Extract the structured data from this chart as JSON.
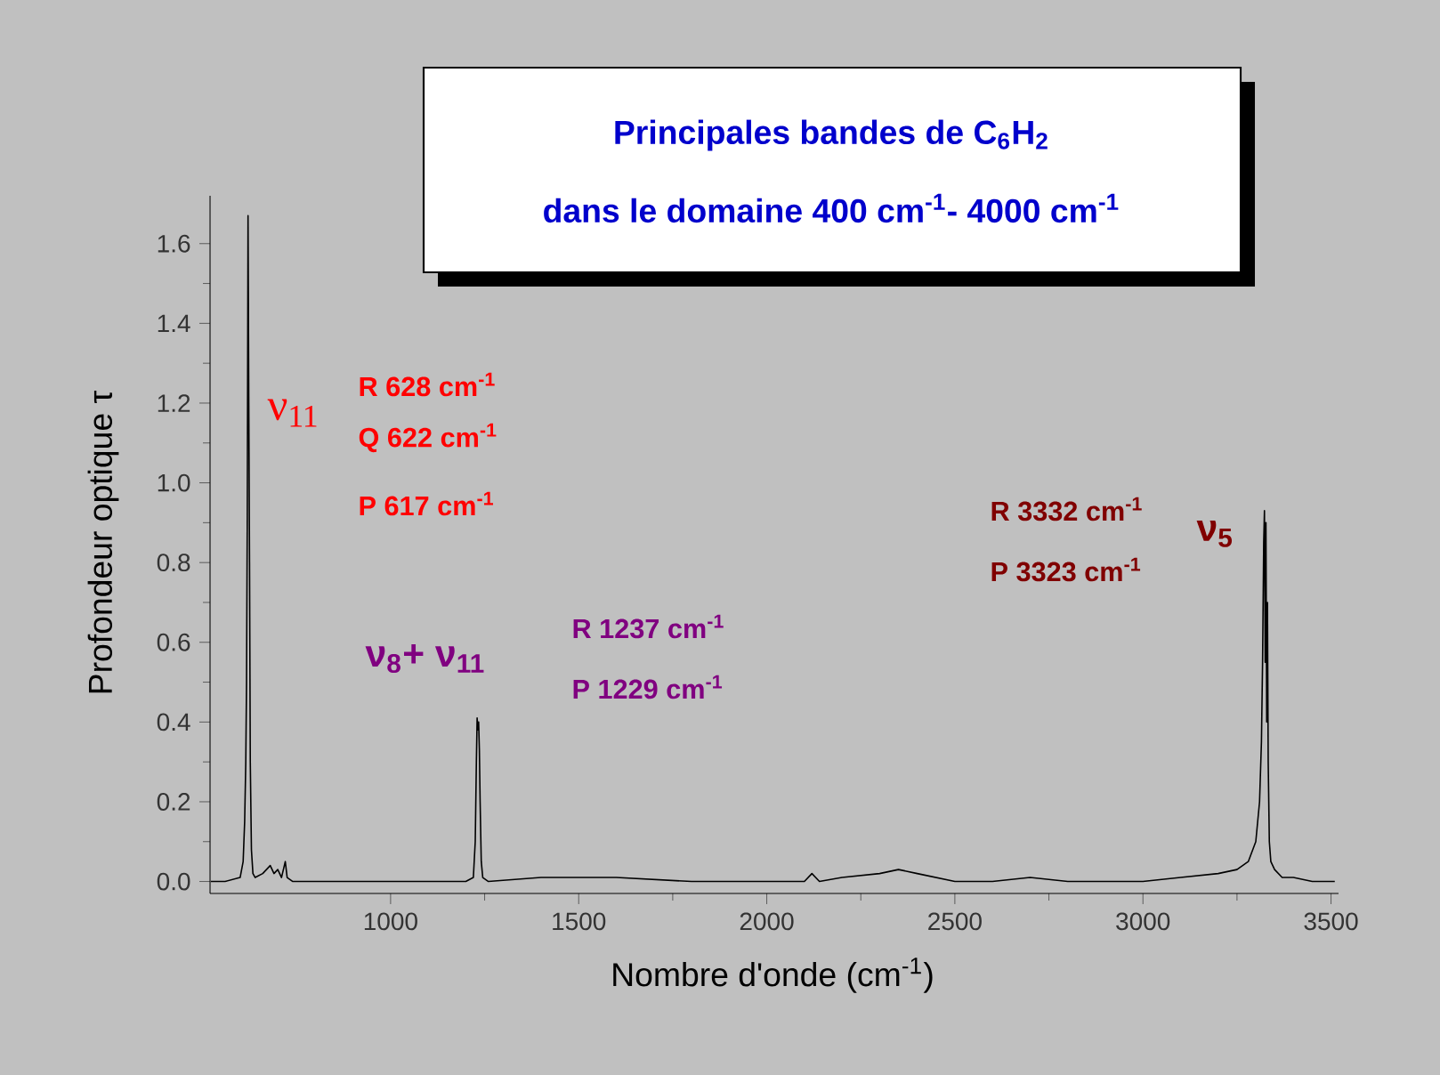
{
  "chart_data": {
    "type": "line",
    "title": "Principales bandes de C$_{6}$H$_{2}$",
    "subtitle": "dans le domaine 400 cm$^{-1}$- 4000 cm$^{-1}$",
    "xlabel": "Nombre d'onde (cm$^{-1}$)",
    "ylabel": "Profondeur optique τ",
    "x": [
      522,
      560,
      600,
      608,
      612,
      615,
      617,
      619,
      621,
      623,
      625,
      627,
      630,
      634,
      640,
      660,
      680,
      690,
      700,
      710,
      720,
      725,
      740,
      800,
      900,
      1000,
      1100,
      1200,
      1220,
      1225,
      1228,
      1230,
      1232,
      1234,
      1236,
      1238,
      1241,
      1245,
      1260,
      1400,
      1600,
      1800,
      2000,
      2100,
      2120,
      2140,
      2200,
      2300,
      2350,
      2400,
      2500,
      2600,
      2700,
      2800,
      2900,
      3000,
      3100,
      3200,
      3250,
      3280,
      3300,
      3310,
      3315,
      3318,
      3321,
      3323,
      3325,
      3327,
      3329,
      3331,
      3333,
      3336,
      3340,
      3350,
      3370,
      3400,
      3450,
      3510
    ],
    "series": [
      {
        "color": "#000000",
        "values": [
          0.0,
          0.0,
          0.01,
          0.05,
          0.15,
          0.3,
          0.5,
          0.92,
          1.67,
          1.2,
          0.8,
          0.3,
          0.08,
          0.02,
          0.01,
          0.02,
          0.04,
          0.02,
          0.03,
          0.01,
          0.05,
          0.01,
          0.0,
          0.0,
          0.0,
          0.0,
          0.0,
          0.0,
          0.01,
          0.1,
          0.3,
          0.41,
          0.38,
          0.4,
          0.33,
          0.2,
          0.05,
          0.01,
          0.0,
          0.01,
          0.01,
          0.0,
          0.0,
          0.0,
          0.02,
          0.0,
          0.01,
          0.02,
          0.03,
          0.02,
          0.0,
          0.0,
          0.01,
          0.0,
          0.0,
          0.0,
          0.01,
          0.02,
          0.03,
          0.05,
          0.1,
          0.2,
          0.35,
          0.55,
          0.85,
          0.93,
          0.55,
          0.9,
          0.4,
          0.7,
          0.3,
          0.1,
          0.05,
          0.03,
          0.01,
          0.01,
          0.0,
          0.0
        ]
      }
    ],
    "xlim": [
      520,
      3520
    ],
    "ylim": [
      -0.03,
      1.72
    ],
    "xticks": [
      1000,
      1500,
      2000,
      2500,
      3000,
      3500
    ],
    "yticks": [
      {
        "value": 0,
        "label": "0.0"
      },
      0.2,
      0.4,
      0.6,
      0.8,
      {
        "value": 1,
        "label": "1.0"
      },
      1.2,
      1.4,
      1.6
    ],
    "annotations": [
      "ν$_{11}$",
      "R 628 cm$^{-1}$",
      "Q 622 cm$^{-1}$",
      "P 617 cm$^{-1}$",
      "ν$_{8}$+ ν$_{11}$",
      "R 1237 cm$^{-1}$",
      "P 1229 cm$^{-1}$",
      "R 3332 cm$^{-1}$",
      "P 3323 cm$^{-1}$",
      "ν$_{5}$"
    ],
    "marker": "none",
    "line_style": "solid"
  }
}
